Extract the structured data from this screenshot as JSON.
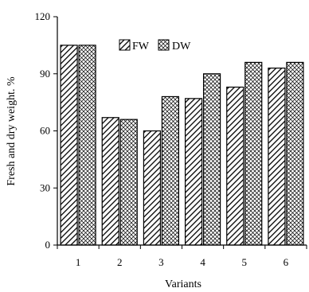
{
  "chart_data": {
    "type": "bar",
    "categories": [
      "1",
      "2",
      "3",
      "4",
      "5",
      "6"
    ],
    "series": [
      {
        "name": "FW",
        "values": [
          105,
          67,
          60,
          77,
          83,
          93
        ],
        "pattern": "diagonal-hatch"
      },
      {
        "name": "DW",
        "values": [
          105,
          66,
          78,
          90,
          96,
          96
        ],
        "pattern": "crosshatch"
      }
    ],
    "xlabel": "Variants",
    "ylabel": "Fresh and dry weight. %",
    "ylim": [
      0,
      120
    ],
    "yticks": [
      "0",
      "30",
      "60",
      "90",
      "120"
    ],
    "grid": false,
    "legend_position": "top-center"
  },
  "colors": {
    "bar_stroke": "#000000",
    "bar_fill": "#ffffff",
    "hatch": "#000000"
  }
}
